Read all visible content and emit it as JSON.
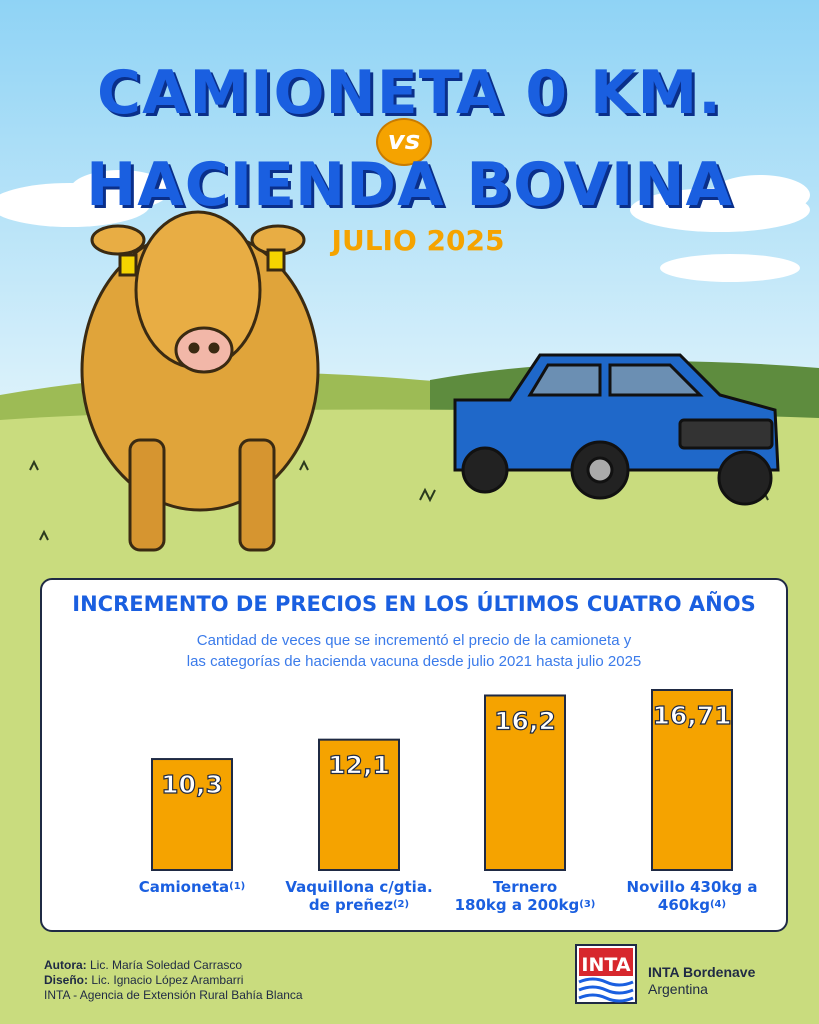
{
  "title_line1": "CAMIONETA 0 KM.",
  "vs_label": "vs",
  "title_line2": "HACIENDA BOVINA",
  "date": "JULIO 2025",
  "colors": {
    "title": "#1a5fe0",
    "accent": "#f5a300",
    "bar": "#f5a300"
  },
  "chart_data": {
    "type": "bar",
    "title": "INCREMENTO DE PRECIOS EN LOS ÚLTIMOS CUATRO AÑOS",
    "subtitle_line1": "Cantidad de veces que se incrementó el precio de la camioneta y",
    "subtitle_line2": "las categorías de hacienda vacuna desde julio 2021 hasta julio 2025",
    "categories": [
      {
        "line1": "Camioneta",
        "line2": "",
        "note": "(1)"
      },
      {
        "line1": "Vaquillona c/gtia.",
        "line2": "de preñez",
        "note": "(2)"
      },
      {
        "line1": "Ternero",
        "line2": "180kg a 200kg",
        "note": "(3)"
      },
      {
        "line1": "Novillo 430kg a",
        "line2": "460kg",
        "note": "(4)"
      }
    ],
    "values": [
      10.3,
      12.1,
      16.2,
      16.71
    ],
    "value_labels": [
      "10,3",
      "12,1",
      "16,2",
      "16,71"
    ]
  },
  "credits": {
    "author_label": "Autora:",
    "author": " Lic. María Soledad Carrasco",
    "design_label": "Diseño:",
    "design": " Lic. Ignacio López Arambarri",
    "agency": "INTA - Agencia de Extensión Rural Bahía Blanca"
  },
  "logo": {
    "mark": "INTA",
    "name": "INTA Bordenave",
    "country": "Argentina"
  }
}
